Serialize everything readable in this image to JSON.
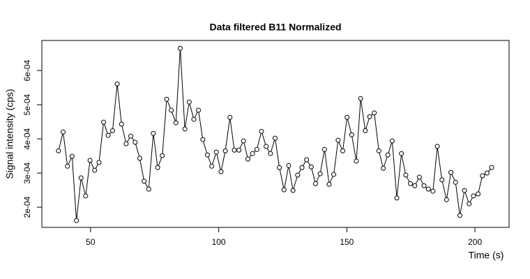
{
  "chart_data": {
    "type": "line",
    "title": "Data filtered B11 Normalized",
    "x_label": "Time (s)",
    "y_label": "Signal intensity (cps)",
    "x": [
      37.5,
      39.3,
      41.0,
      42.8,
      44.5,
      46.3,
      48.1,
      49.8,
      51.6,
      53.3,
      55.1,
      56.9,
      58.6,
      60.4,
      62.1,
      63.9,
      65.7,
      67.4,
      69.2,
      70.9,
      72.7,
      74.5,
      76.2,
      78.0,
      79.7,
      81.5,
      83.3,
      85.0,
      86.8,
      88.5,
      90.3,
      92.1,
      93.8,
      95.6,
      97.3,
      99.1,
      100.9,
      102.6,
      104.4,
      106.1,
      107.9,
      109.7,
      111.4,
      113.2,
      114.9,
      116.7,
      118.5,
      120.2,
      122.0,
      123.7,
      125.5,
      127.3,
      129.0,
      130.8,
      132.5,
      134.3,
      136.1,
      137.8,
      139.6,
      141.3,
      143.1,
      144.9,
      146.6,
      148.4,
      150.1,
      151.9,
      153.7,
      155.4,
      157.2,
      158.9,
      160.7,
      162.5,
      164.2,
      166.0,
      167.7,
      169.5,
      171.3,
      173.0,
      174.8,
      176.5,
      178.3,
      180.1,
      181.8,
      183.6,
      185.3,
      187.1,
      188.9,
      190.6,
      192.4,
      194.1,
      195.9,
      197.7,
      199.4,
      201.2,
      202.9,
      204.7,
      206.5
    ],
    "series": [
      {
        "color": "#000000",
        "values": [
          0.000365,
          0.00042,
          0.00032,
          0.000349,
          0.000161,
          0.000286,
          0.000233,
          0.000337,
          0.000308,
          0.000331,
          0.000449,
          0.00041,
          0.000424,
          0.000561,
          0.000443,
          0.000386,
          0.000408,
          0.00039,
          0.000343,
          0.000276,
          0.000253,
          0.000416,
          0.000316,
          0.000351,
          0.000516,
          0.000484,
          0.000447,
          0.000665,
          0.000429,
          0.000508,
          0.000457,
          0.000484,
          0.000398,
          0.000353,
          0.00032,
          0.000361,
          0.000304,
          0.000365,
          0.000463,
          0.000367,
          0.000367,
          0.000394,
          0.000341,
          0.000357,
          0.000369,
          0.000422,
          0.000378,
          0.000357,
          0.000402,
          0.000316,
          0.000251,
          0.000322,
          0.000249,
          0.000294,
          0.000316,
          0.000339,
          0.000318,
          0.000269,
          0.000298,
          0.000369,
          0.000267,
          0.000296,
          0.000396,
          0.000365,
          0.000463,
          0.000412,
          0.000335,
          0.000518,
          0.000424,
          0.000465,
          0.000476,
          0.000365,
          0.000314,
          0.000353,
          0.000394,
          0.000227,
          0.000357,
          0.000294,
          0.000269,
          0.000263,
          0.000288,
          0.000263,
          0.000253,
          0.000247,
          0.000378,
          0.00028,
          0.000222,
          0.000302,
          0.000273,
          0.000176,
          0.000249,
          0.00021,
          0.000233,
          0.000239,
          0.000292,
          0.0003,
          0.000316
        ]
      }
    ],
    "xlim": [
      31,
      213.3
    ],
    "xticks": [
      50,
      100,
      150,
      200
    ],
    "ylim": [
      0.000141,
      0.000688
    ],
    "yticks": [
      {
        "value": 0.0002,
        "label": "2e-04"
      },
      {
        "value": 0.0003,
        "label": "3e-04"
      },
      {
        "value": 0.0004,
        "label": "4e-04"
      },
      {
        "value": 0.0005,
        "label": "5e-04"
      },
      {
        "value": 0.0006,
        "label": "6e-04"
      }
    ],
    "markers": true
  }
}
